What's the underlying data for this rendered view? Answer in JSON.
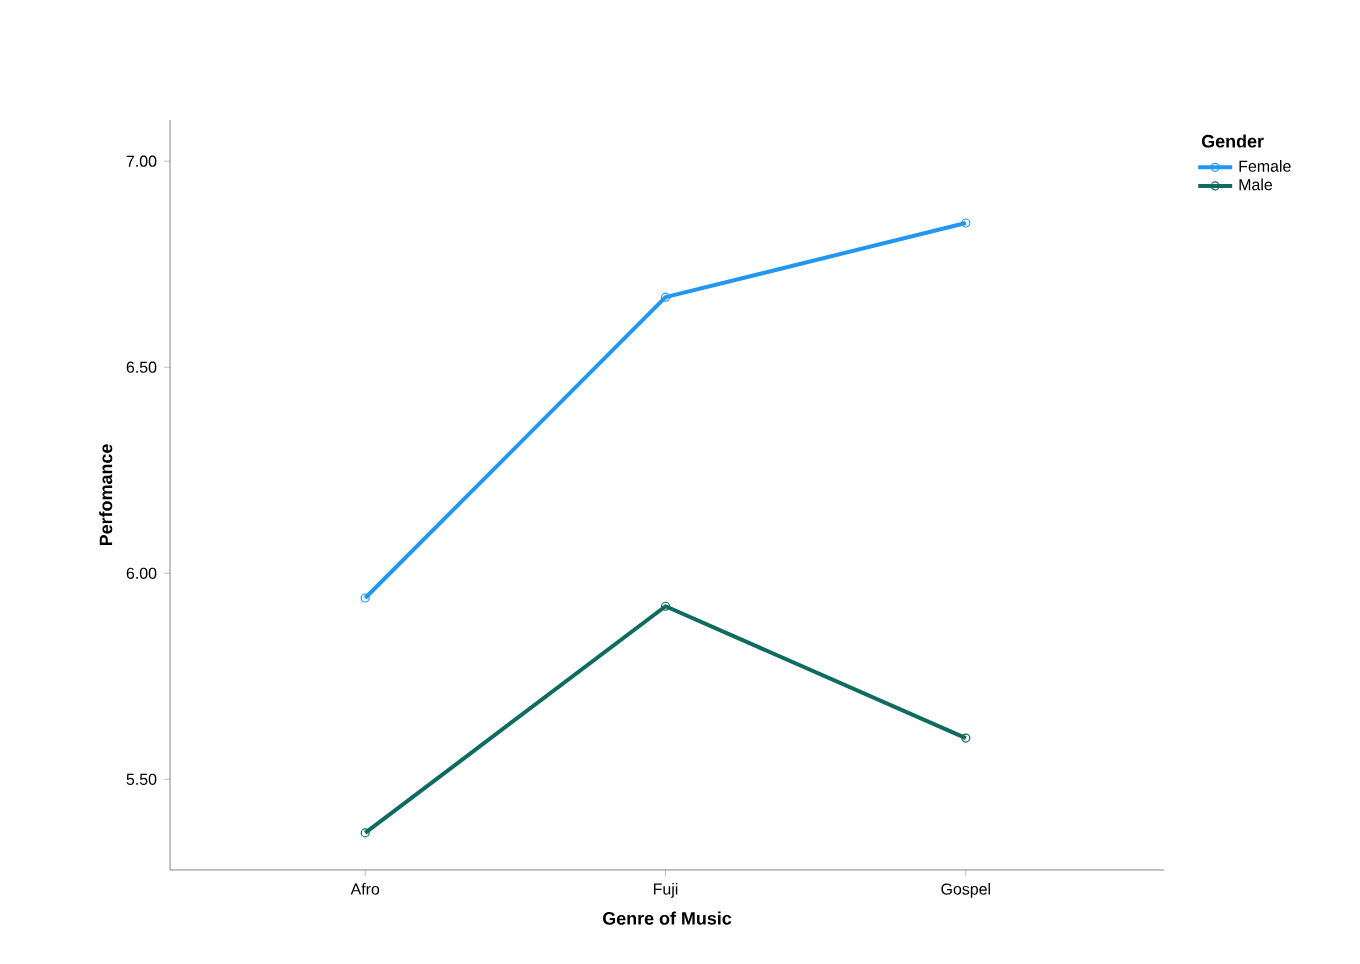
{
  "chart_data": {
    "type": "line",
    "xlabel": "Genre of Music",
    "ylabel": "Perfomance",
    "legend_title": "Gender",
    "categories": [
      "Afro",
      "Fuji",
      "Gospel"
    ],
    "series": [
      {
        "name": "Female",
        "color": "#2196f3",
        "values": [
          5.94,
          6.67,
          6.85
        ]
      },
      {
        "name": "Male",
        "color": "#0e6b5f",
        "values": [
          5.37,
          5.92,
          5.6
        ]
      }
    ],
    "ylim": [
      5.28,
      7.1
    ],
    "yticks": [
      {
        "value": 5.5,
        "label": "5.50"
      },
      {
        "value": 6.0,
        "label": "6.00"
      },
      {
        "value": 6.5,
        "label": "6.50"
      },
      {
        "value": 7.0,
        "label": "7.00"
      }
    ],
    "marker": "circle",
    "line_style": "solid",
    "legend": "top right",
    "grid": false
  }
}
